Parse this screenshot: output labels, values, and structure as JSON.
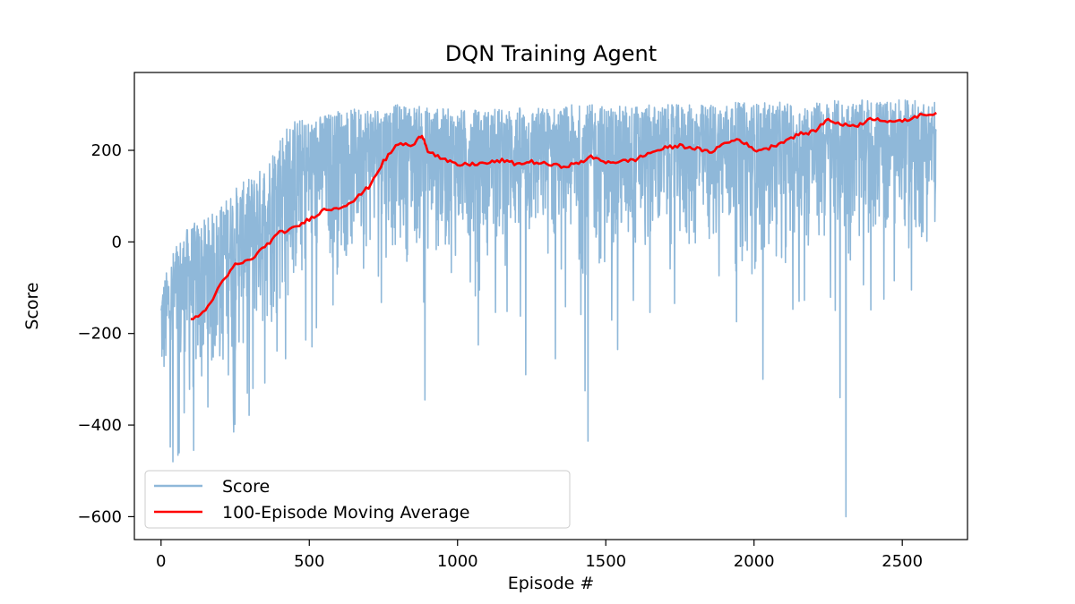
{
  "chart_data": {
    "type": "line",
    "title": "DQN Training Agent",
    "xlabel": "Episode #",
    "ylabel": "Score",
    "xlim": [
      -90,
      2720
    ],
    "ylim": [
      -650,
      370
    ],
    "x_ticks": [
      0,
      500,
      1000,
      1500,
      2000,
      2500
    ],
    "y_ticks": [
      -600,
      -400,
      -200,
      0,
      200
    ],
    "y_tick_labels": [
      "−600",
      "−400",
      "−200",
      "0",
      "200"
    ],
    "grid": false,
    "legend_position": "lower-left",
    "series": [
      {
        "name": "Score",
        "color": "#8fb8d9",
        "episodes": 2615,
        "envelope": {
          "x": [
            0,
            50,
            100,
            150,
            200,
            250,
            300,
            350,
            400,
            450,
            500,
            550,
            600,
            650,
            700,
            750,
            800,
            850,
            900,
            1000,
            1100,
            1200,
            1300,
            1400,
            1500,
            1600,
            1700,
            1800,
            1900,
            2000,
            2100,
            2200,
            2300,
            2400,
            2500,
            2615
          ],
          "upper": [
            -100,
            0,
            40,
            50,
            80,
            120,
            140,
            170,
            240,
            270,
            270,
            280,
            290,
            290,
            300,
            300,
            300,
            300,
            295,
            290,
            290,
            295,
            295,
            300,
            300,
            300,
            300,
            300,
            305,
            305,
            305,
            305,
            310,
            310,
            310,
            310
          ],
          "lower": [
            -400,
            -440,
            -440,
            -420,
            -380,
            -330,
            -300,
            -270,
            -230,
            -200,
            -160,
            -130,
            -110,
            -100,
            -80,
            -70,
            -70,
            -70,
            -90,
            -100,
            -100,
            -90,
            -100,
            -110,
            -120,
            -110,
            -90,
            -100,
            -100,
            -110,
            -90,
            -90,
            -80,
            -70,
            -60,
            -50
          ]
        },
        "spikes": [
          {
            "x": 40,
            "y": -480
          },
          {
            "x": 110,
            "y": -455
          },
          {
            "x": 245,
            "y": -415
          },
          {
            "x": 310,
            "y": -320
          },
          {
            "x": 420,
            "y": -255
          },
          {
            "x": 890,
            "y": -345
          },
          {
            "x": 1070,
            "y": -225
          },
          {
            "x": 1230,
            "y": -290
          },
          {
            "x": 1330,
            "y": -255
          },
          {
            "x": 1430,
            "y": -325
          },
          {
            "x": 1440,
            "y": -435
          },
          {
            "x": 1540,
            "y": -235
          },
          {
            "x": 2030,
            "y": -300
          },
          {
            "x": 2290,
            "y": -340
          },
          {
            "x": 2310,
            "y": -600
          }
        ]
      },
      {
        "name": "100-Episode Moving Average",
        "color": "#ff0000",
        "x": [
          100,
          150,
          200,
          250,
          300,
          350,
          400,
          450,
          500,
          550,
          600,
          650,
          700,
          750,
          800,
          850,
          880,
          900,
          950,
          1000,
          1050,
          1100,
          1150,
          1200,
          1250,
          1300,
          1350,
          1400,
          1450,
          1500,
          1550,
          1600,
          1650,
          1700,
          1750,
          1800,
          1850,
          1900,
          1950,
          2000,
          2050,
          2100,
          2150,
          2200,
          2250,
          2300,
          2350,
          2400,
          2450,
          2500,
          2550,
          2615
        ],
        "y": [
          -172,
          -150,
          -95,
          -50,
          -40,
          -10,
          20,
          30,
          50,
          70,
          75,
          90,
          120,
          175,
          215,
          210,
          235,
          200,
          180,
          168,
          170,
          172,
          178,
          170,
          175,
          170,
          165,
          170,
          185,
          175,
          175,
          180,
          195,
          205,
          210,
          205,
          195,
          215,
          225,
          200,
          205,
          220,
          235,
          240,
          268,
          255,
          255,
          270,
          265,
          262,
          275,
          282
        ]
      }
    ]
  }
}
